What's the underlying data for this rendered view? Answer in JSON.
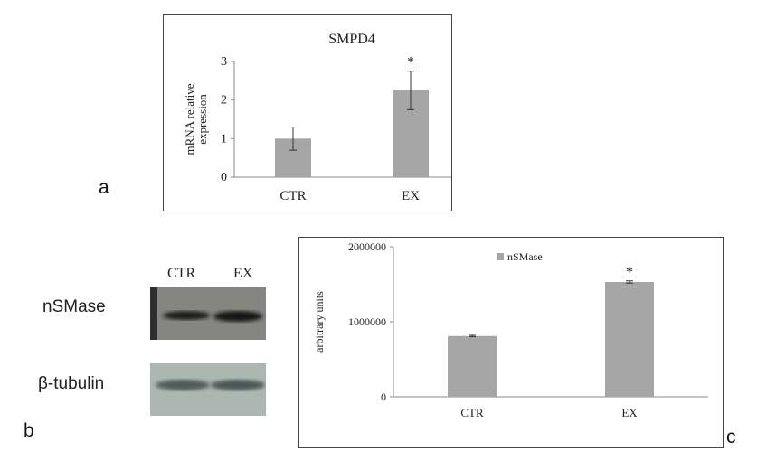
{
  "panel_labels": {
    "a": "a",
    "b": "b",
    "c": "c"
  },
  "blot": {
    "lanes": [
      "CTR",
      "EX"
    ],
    "rows": [
      "nSMase",
      "β-tubulin"
    ]
  },
  "chart_data": [
    {
      "type": "bar",
      "title": "SMPD4",
      "ylabel": "mRNA relative\nexpression",
      "xlabel": "",
      "categories": [
        "CTR",
        "EX"
      ],
      "values": [
        1.0,
        2.25
      ],
      "error": [
        0.3,
        0.5
      ],
      "significance": [
        "",
        "*"
      ],
      "yticks": [
        0,
        1,
        2,
        3
      ],
      "ylim": [
        0,
        3
      ],
      "bar_color": "#a6a6a6",
      "legend": null,
      "grid": false
    },
    {
      "type": "bar",
      "title": "",
      "ylabel": "arbitrary  units",
      "xlabel": "",
      "categories": [
        "CTR",
        "EX"
      ],
      "series": [
        {
          "name": "nSMase",
          "values": [
            810000,
            1530000
          ]
        }
      ],
      "error": [
        10000,
        15000
      ],
      "significance": [
        "",
        "*"
      ],
      "yticks": [
        0,
        1000000,
        2000000
      ],
      "ylim": [
        0,
        2000000
      ],
      "bar_color": "#a6a6a6",
      "legend": "top-center",
      "grid": false
    }
  ]
}
